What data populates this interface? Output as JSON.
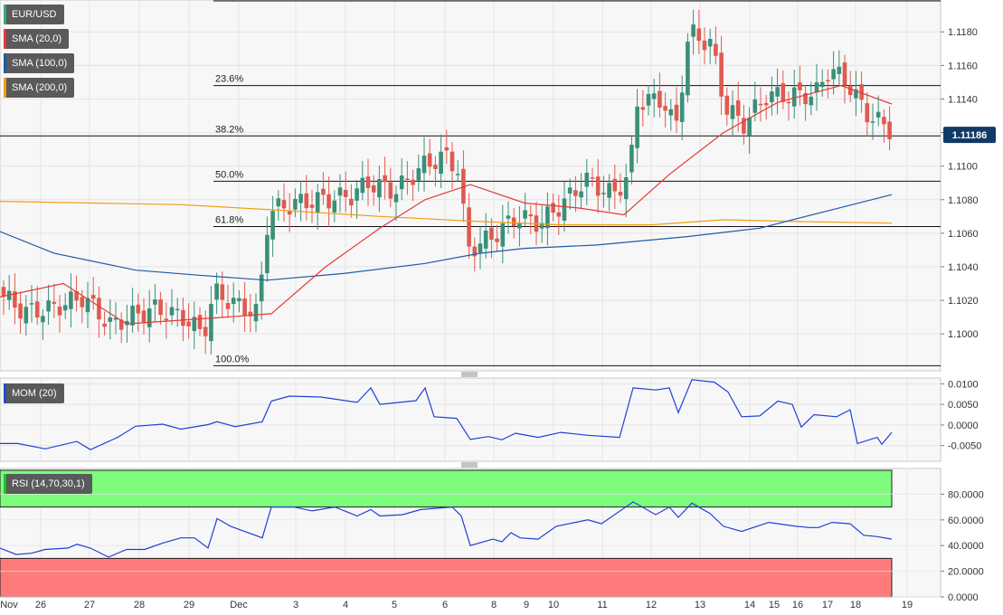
{
  "chart_data": {
    "type": "candlestick",
    "symbol": "EUR/USD",
    "last_price": "1.11186",
    "indicators": [
      {
        "name": "SMA (20,0)",
        "color": "#e53935"
      },
      {
        "name": "SMA (100,0)",
        "color": "#1e5aa8"
      },
      {
        "name": "SMA (200,0)",
        "color": "#f39c12"
      }
    ],
    "x_ticks": [
      "Nov",
      "26",
      "27",
      "28",
      "29",
      "Dec",
      "3",
      "4",
      "5",
      "6",
      "8",
      "9",
      "10",
      "11",
      "12",
      "13",
      "14",
      "15",
      "16",
      "17",
      "18",
      "19"
    ],
    "price_axis": {
      "ticks": [
        "1.1000",
        "1.1020",
        "1.1040",
        "1.1060",
        "1.1080",
        "1.1100",
        "1.1120",
        "1.1140",
        "1.1160",
        "1.1180"
      ],
      "range": [
        1.0978,
        1.1199
      ]
    },
    "fibonacci": [
      {
        "label": "23.6%",
        "value": 1.1148
      },
      {
        "label": "38.2%",
        "value": 1.1118
      },
      {
        "label": "50.0%",
        "value": 1.1091
      },
      {
        "label": "61.8%",
        "value": 1.1064
      },
      {
        "label": "100.0%",
        "value": 1.0981
      }
    ],
    "key_points": {
      "sma20": [
        [
          0,
          1.1022
        ],
        [
          70,
          1.103
        ],
        [
          140,
          1.1006
        ],
        [
          250,
          1.101
        ],
        [
          300,
          1.1012
        ],
        [
          360,
          1.104
        ],
        [
          420,
          1.1063
        ],
        [
          470,
          1.108
        ],
        [
          520,
          1.1089
        ],
        [
          580,
          1.1078
        ],
        [
          640,
          1.1075
        ],
        [
          690,
          1.1071
        ],
        [
          740,
          1.1095
        ],
        [
          800,
          1.112
        ],
        [
          860,
          1.1138
        ],
        [
          930,
          1.1148
        ],
        [
          986,
          1.1137
        ]
      ],
      "sma100": [
        [
          0,
          1.1061
        ],
        [
          60,
          1.1048
        ],
        [
          150,
          1.1038
        ],
        [
          220,
          1.1035
        ],
        [
          295,
          1.1032
        ],
        [
          380,
          1.1036
        ],
        [
          470,
          1.1042
        ],
        [
          530,
          1.1048
        ],
        [
          580,
          1.1051
        ],
        [
          660,
          1.1053
        ],
        [
          760,
          1.1058
        ],
        [
          840,
          1.1063
        ],
        [
          920,
          1.1074
        ],
        [
          986,
          1.1083
        ]
      ],
      "sma200": [
        [
          0,
          1.1079
        ],
        [
          200,
          1.1077
        ],
        [
          300,
          1.1074
        ],
        [
          420,
          1.107
        ],
        [
          530,
          1.1067
        ],
        [
          620,
          1.1065
        ],
        [
          720,
          1.1065
        ],
        [
          800,
          1.1068
        ],
        [
          880,
          1.1067
        ],
        [
          986,
          1.1066
        ]
      ]
    },
    "mom": {
      "name": "MOM (20)",
      "ticks": [
        "0.0100",
        "0.0050",
        "0.0000",
        "-0.0050"
      ],
      "range": [
        -0.0088,
        0.0114
      ],
      "key_points": [
        [
          0,
          -0.0045
        ],
        [
          20,
          -0.0045
        ],
        [
          50,
          -0.0058
        ],
        [
          85,
          -0.004
        ],
        [
          100,
          -0.006
        ],
        [
          130,
          -0.003
        ],
        [
          150,
          -0.0003
        ],
        [
          180,
          0.0002
        ],
        [
          200,
          -0.001
        ],
        [
          230,
          0.0001
        ],
        [
          240,
          0.0008
        ],
        [
          260,
          -0.0004
        ],
        [
          290,
          0.0008
        ],
        [
          300,
          0.0058
        ],
        [
          320,
          0.007
        ],
        [
          355,
          0.0068
        ],
        [
          395,
          0.0055
        ],
        [
          410,
          0.009
        ],
        [
          420,
          0.005
        ],
        [
          460,
          0.0059
        ],
        [
          470,
          0.009
        ],
        [
          480,
          0.002
        ],
        [
          505,
          0.0016
        ],
        [
          520,
          -0.0035
        ],
        [
          540,
          -0.0028
        ],
        [
          555,
          -0.0036
        ],
        [
          570,
          -0.002
        ],
        [
          595,
          -0.003
        ],
        [
          620,
          -0.0018
        ],
        [
          650,
          -0.0025
        ],
        [
          685,
          -0.003
        ],
        [
          700,
          0.009
        ],
        [
          725,
          0.0085
        ],
        [
          740,
          0.009
        ],
        [
          750,
          0.003
        ],
        [
          765,
          0.011
        ],
        [
          790,
          0.0104
        ],
        [
          805,
          0.008
        ],
        [
          820,
          0.002
        ],
        [
          840,
          0.0022
        ],
        [
          860,
          0.0058
        ],
        [
          876,
          0.005
        ],
        [
          886,
          -0.0005
        ],
        [
          900,
          0.0025
        ],
        [
          925,
          0.002
        ],
        [
          940,
          0.0037
        ],
        [
          948,
          -0.0045
        ],
        [
          970,
          -0.003
        ],
        [
          975,
          -0.0047
        ],
        [
          986,
          -0.0018
        ]
      ]
    },
    "rsi": {
      "name": "RSI (14,70,30,1)",
      "ticks": [
        "80.0000",
        "60.0000",
        "40.0000",
        "20.0000",
        "0.0000"
      ],
      "range": [
        0,
        100
      ],
      "overbought": 70,
      "oversold": 30,
      "key_points": [
        [
          0,
          38
        ],
        [
          18,
          33
        ],
        [
          35,
          34
        ],
        [
          50,
          37
        ],
        [
          75,
          38
        ],
        [
          85,
          41
        ],
        [
          100,
          38
        ],
        [
          120,
          31
        ],
        [
          140,
          37
        ],
        [
          160,
          37
        ],
        [
          180,
          42
        ],
        [
          200,
          46
        ],
        [
          215,
          46
        ],
        [
          230,
          38
        ],
        [
          240,
          61
        ],
        [
          255,
          55
        ],
        [
          290,
          46
        ],
        [
          300,
          70
        ],
        [
          325,
          70
        ],
        [
          345,
          67
        ],
        [
          370,
          70
        ],
        [
          395,
          63
        ],
        [
          410,
          68
        ],
        [
          420,
          63
        ],
        [
          445,
          64
        ],
        [
          465,
          68
        ],
        [
          500,
          70
        ],
        [
          510,
          63
        ],
        [
          520,
          40
        ],
        [
          545,
          45
        ],
        [
          555,
          43
        ],
        [
          565,
          50
        ],
        [
          575,
          46
        ],
        [
          595,
          45
        ],
        [
          615,
          55
        ],
        [
          650,
          60
        ],
        [
          665,
          57
        ],
        [
          700,
          74
        ],
        [
          725,
          64
        ],
        [
          740,
          70
        ],
        [
          750,
          62
        ],
        [
          765,
          73
        ],
        [
          785,
          65
        ],
        [
          800,
          55
        ],
        [
          820,
          51
        ],
        [
          850,
          58
        ],
        [
          880,
          55
        ],
        [
          895,
          54
        ],
        [
          905,
          54
        ],
        [
          920,
          58
        ],
        [
          940,
          57
        ],
        [
          955,
          48
        ],
        [
          970,
          47
        ],
        [
          986,
          45
        ]
      ]
    }
  }
}
